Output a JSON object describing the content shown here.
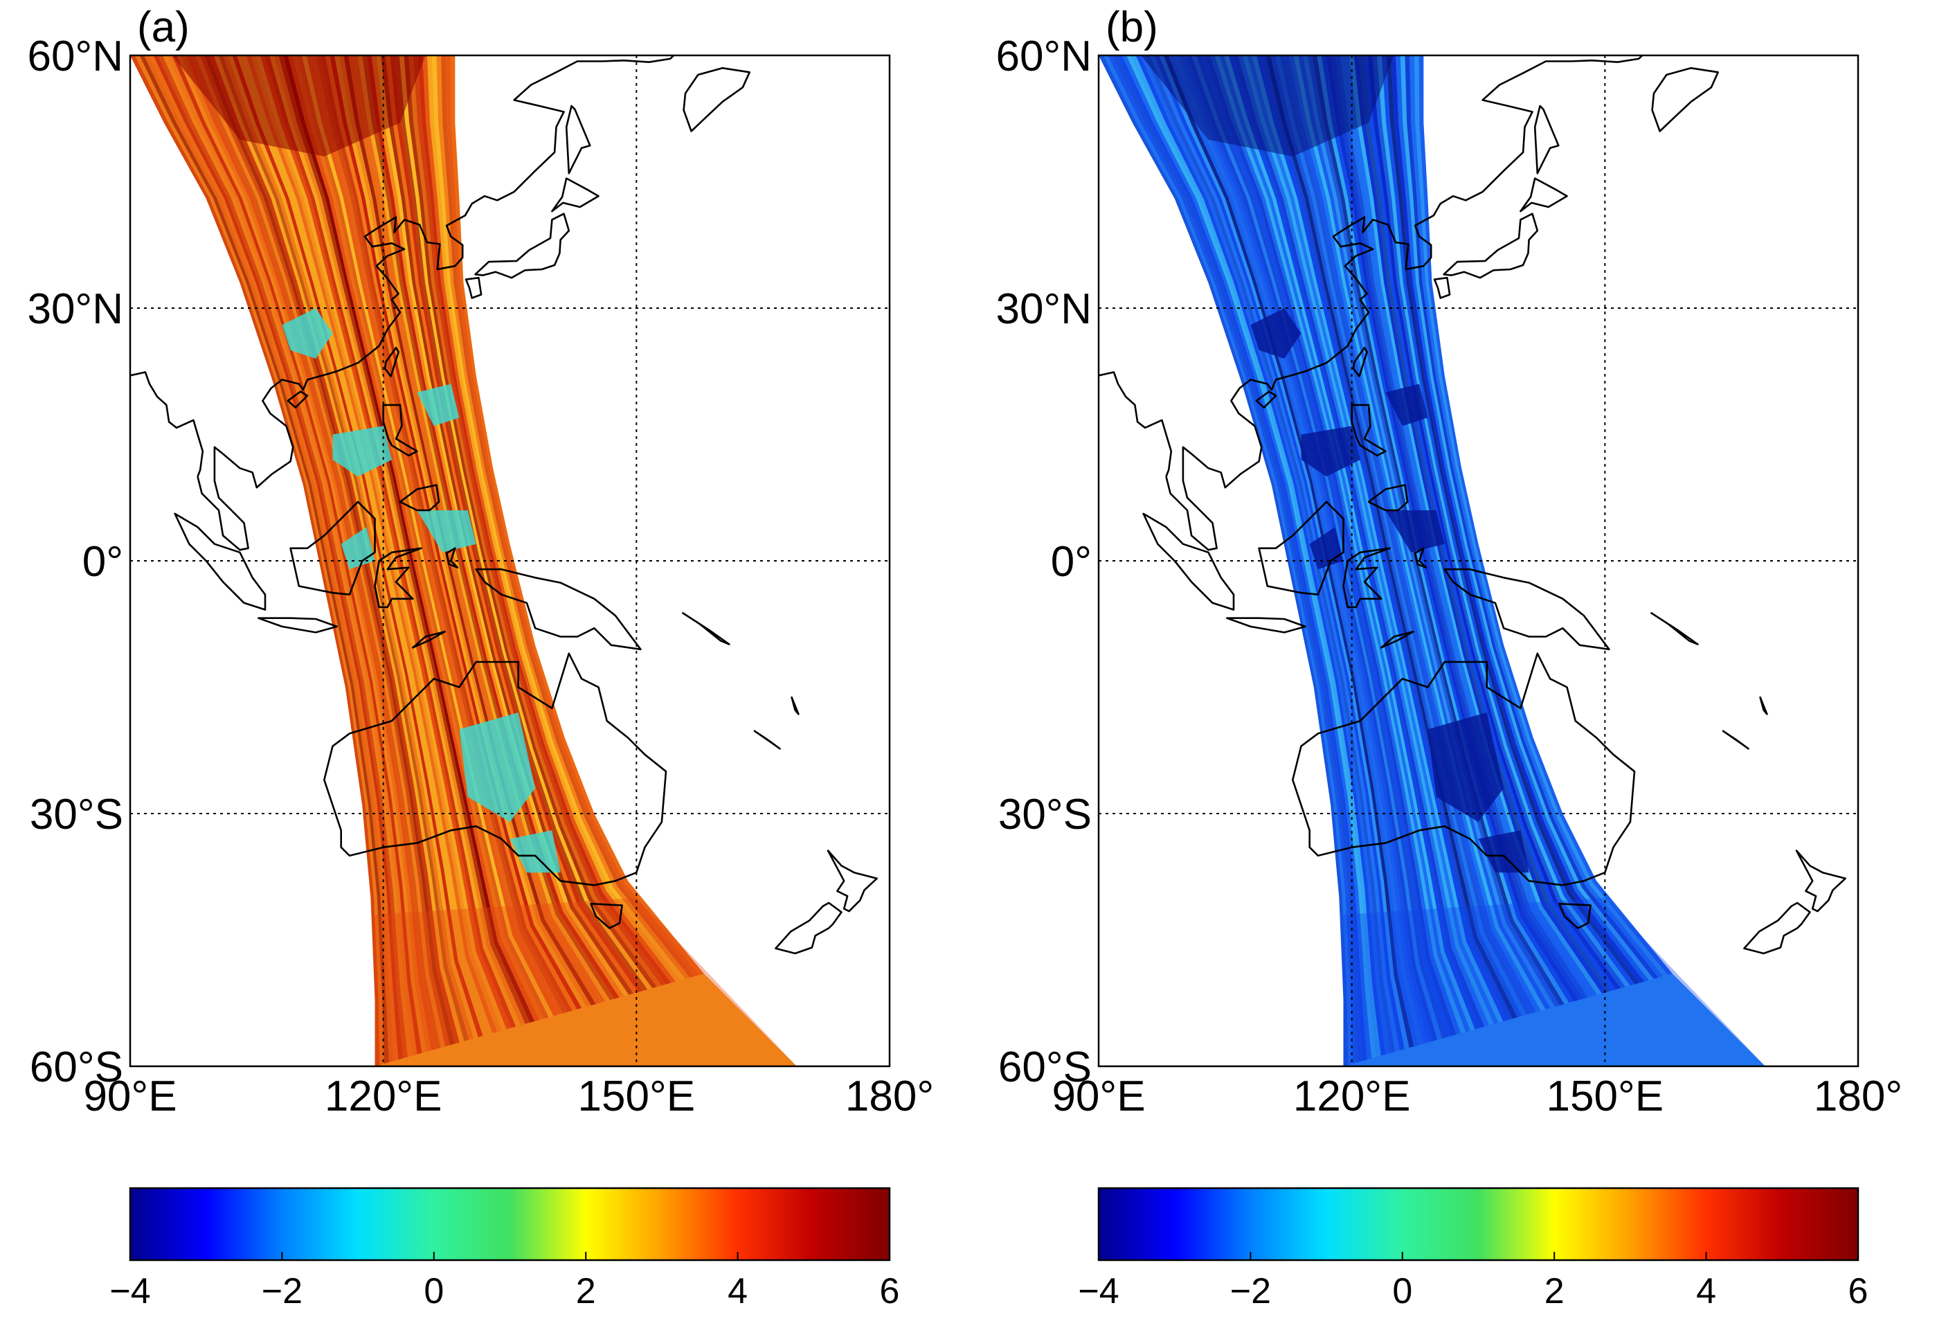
{
  "panels": [
    {
      "id": "a",
      "label": "(a)",
      "lat_labels": [
        "60°N",
        "30°N",
        "0°",
        "30°S",
        "60°S"
      ],
      "lon_labels": [
        "90°E",
        "120°E",
        "150°E",
        "180°"
      ],
      "colorbar_ticks": [
        "−4",
        "−2",
        "0",
        "2",
        "4",
        "6"
      ],
      "swath_palette": [
        "#8b0000",
        "#c41a08",
        "#e2420f",
        "#f07418",
        "#f7a420",
        "#ffc52a",
        "#9ee46a",
        "#3fe3c8",
        "#32b4f0"
      ],
      "anomaly_color": "#3fd8d0"
    },
    {
      "id": "b",
      "label": "(b)",
      "lat_labels": [
        "60°N",
        "30°N",
        "0°",
        "30°S",
        "60°S"
      ],
      "lon_labels": [
        "90°E",
        "120°E",
        "150°E",
        "180°"
      ],
      "colorbar_ticks": [
        "−4",
        "−2",
        "0",
        "2",
        "4",
        "6"
      ],
      "swath_palette": [
        "#06107a",
        "#0a24c8",
        "#0f42e8",
        "#1a66f0",
        "#2b8ef4",
        "#34b2f4",
        "#3ed6ee",
        "#45e6cc",
        "#5cecaa"
      ],
      "anomaly_color": "#061898"
    }
  ],
  "map": {
    "lat_range": [
      -60,
      60
    ],
    "lon_range": [
      90,
      180
    ],
    "grid_lats": [
      30,
      0,
      -30
    ],
    "grid_lons": [
      120,
      150
    ],
    "coastline_color": "#000000"
  },
  "colorbar": {
    "range": [
      -4,
      6
    ],
    "colormap": "jet",
    "stops": [
      "#00008f",
      "#0000ff",
      "#0080ff",
      "#00e0ff",
      "#30f0a0",
      "#40e060",
      "#ffff00",
      "#ffa000",
      "#ff3000",
      "#c00000",
      "#800000"
    ]
  }
}
